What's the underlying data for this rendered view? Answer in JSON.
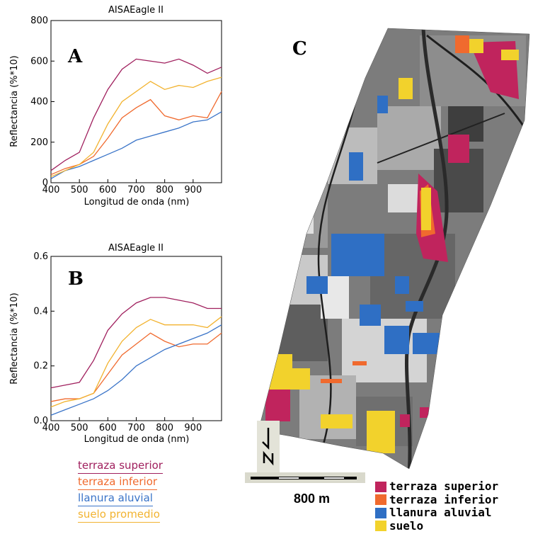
{
  "chart_data": [
    {
      "type": "line",
      "panel": "A",
      "title": "AISAEagle II",
      "xlabel": "Longitud de onda (nm)",
      "ylabel": "Reflectancia (%*10)",
      "xlim": [
        400,
        1000
      ],
      "ylim": [
        0,
        800
      ],
      "xticks": [
        400,
        500,
        600,
        700,
        800,
        900
      ],
      "yticks": [
        0,
        200,
        400,
        600,
        800
      ],
      "x": [
        400,
        450,
        500,
        550,
        600,
        650,
        700,
        750,
        800,
        850,
        900,
        950,
        1000
      ],
      "series": [
        {
          "name": "terraza superior",
          "color": "#a0205e",
          "values": [
            60,
            110,
            150,
            320,
            460,
            560,
            610,
            600,
            590,
            610,
            580,
            540,
            570
          ]
        },
        {
          "name": "terraza inferior",
          "color": "#f06a2e",
          "values": [
            40,
            70,
            90,
            130,
            220,
            320,
            370,
            410,
            330,
            310,
            330,
            320,
            450
          ]
        },
        {
          "name": "llanura aluvial",
          "color": "#3a74c8",
          "values": [
            20,
            60,
            80,
            110,
            140,
            170,
            210,
            230,
            250,
            270,
            300,
            310,
            350
          ]
        },
        {
          "name": "suelo promedio",
          "color": "#f2b330",
          "values": [
            30,
            60,
            90,
            150,
            290,
            400,
            450,
            500,
            460,
            480,
            470,
            500,
            520
          ]
        }
      ]
    },
    {
      "type": "line",
      "panel": "B",
      "title": "AISAEagle II",
      "xlabel": "Longitud de onda (nm)",
      "ylabel": "Reflectancia (%*10)",
      "xlim": [
        400,
        1000
      ],
      "ylim": [
        0,
        0.6
      ],
      "xticks": [
        400,
        500,
        600,
        700,
        800,
        900
      ],
      "yticks": [
        0.0,
        0.2,
        0.4,
        0.6
      ],
      "x": [
        400,
        450,
        500,
        550,
        600,
        650,
        700,
        750,
        800,
        850,
        900,
        950,
        1000
      ],
      "series": [
        {
          "name": "terraza superior",
          "color": "#a0205e",
          "values": [
            0.12,
            0.13,
            0.14,
            0.22,
            0.33,
            0.39,
            0.43,
            0.45,
            0.45,
            0.44,
            0.43,
            0.41,
            0.41
          ]
        },
        {
          "name": "terraza inferior",
          "color": "#f06a2e",
          "values": [
            0.07,
            0.08,
            0.08,
            0.1,
            0.17,
            0.24,
            0.28,
            0.32,
            0.29,
            0.27,
            0.28,
            0.28,
            0.32
          ]
        },
        {
          "name": "llanura aluvial",
          "color": "#3a74c8",
          "values": [
            0.02,
            0.04,
            0.06,
            0.08,
            0.11,
            0.15,
            0.2,
            0.23,
            0.26,
            0.28,
            0.3,
            0.32,
            0.35
          ]
        },
        {
          "name": "suelo promedio",
          "color": "#f2b330",
          "values": [
            0.05,
            0.07,
            0.08,
            0.1,
            0.21,
            0.29,
            0.34,
            0.37,
            0.35,
            0.35,
            0.35,
            0.34,
            0.38
          ]
        }
      ]
    }
  ],
  "panel_labels": {
    "a": "A",
    "b": "B",
    "c": "C"
  },
  "legend_left": [
    "terraza superior",
    "terraza inferior",
    "llanura aluvial",
    "suelo promedio"
  ],
  "legend_left_colors": [
    "#a0205e",
    "#f06a2e",
    "#3a74c8",
    "#f2b330"
  ],
  "map": {
    "legend": [
      {
        "label": "terraza superior",
        "color": "#c0245d"
      },
      {
        "label": "terraza inferior",
        "color": "#f06a2e"
      },
      {
        "label": "llanura aluvial",
        "color": "#2f6fc4"
      },
      {
        "label": "suelo",
        "color": "#f2d22c"
      }
    ],
    "scale_label": "800 m",
    "north_label": "N"
  }
}
